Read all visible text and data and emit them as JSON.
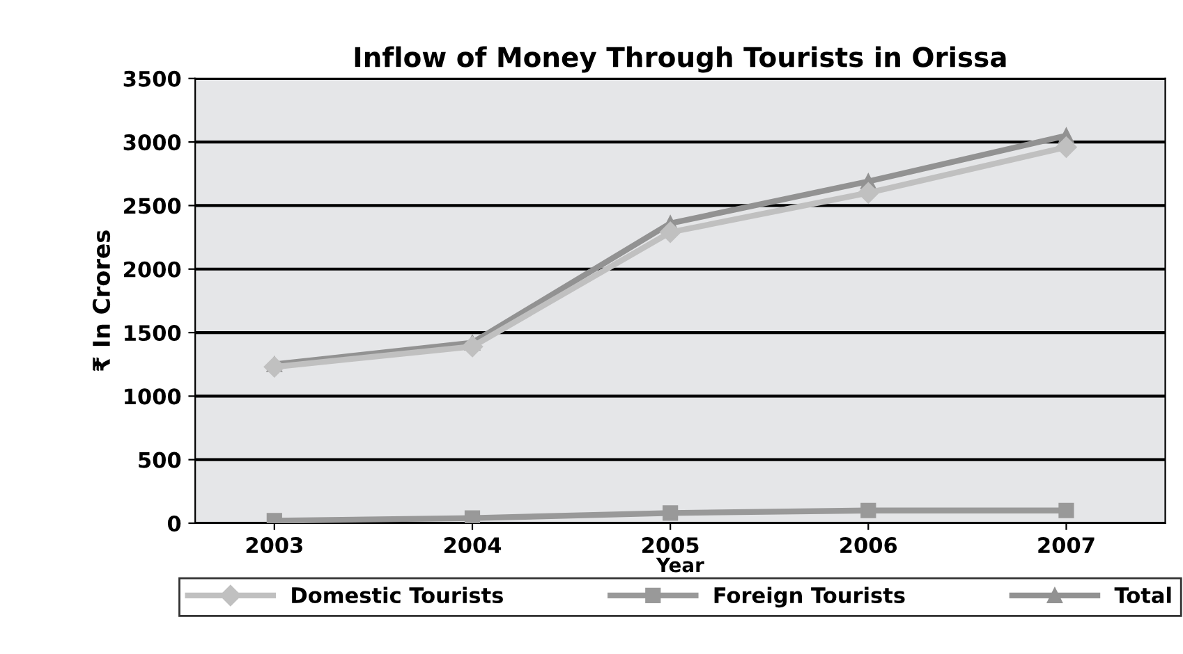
{
  "chart_data": {
    "type": "line",
    "title": "Inflow of Money Through Tourists in Orissa",
    "xlabel": "Year",
    "ylabel": "₹ In Crores",
    "categories": [
      "2003",
      "2004",
      "2005",
      "2006",
      "2007"
    ],
    "series": [
      {
        "name": "Domestic Tourists",
        "color": "#c0c0c0",
        "marker": "diamond",
        "values": [
          1230,
          1390,
          2290,
          2600,
          2960
        ]
      },
      {
        "name": "Foreign Tourists",
        "color": "#999999",
        "marker": "square",
        "values": [
          20,
          40,
          80,
          100,
          100
        ]
      },
      {
        "name": "Total",
        "color": "#929292",
        "marker": "triangle",
        "values": [
          1250,
          1420,
          2360,
          2690,
          3050
        ]
      }
    ],
    "ylim": [
      0,
      3500
    ],
    "yticks": [
      0,
      500,
      1000,
      1500,
      2000,
      2500,
      3000,
      3500
    ],
    "grid": "y",
    "legend": "bottom",
    "line_style": "solid"
  }
}
